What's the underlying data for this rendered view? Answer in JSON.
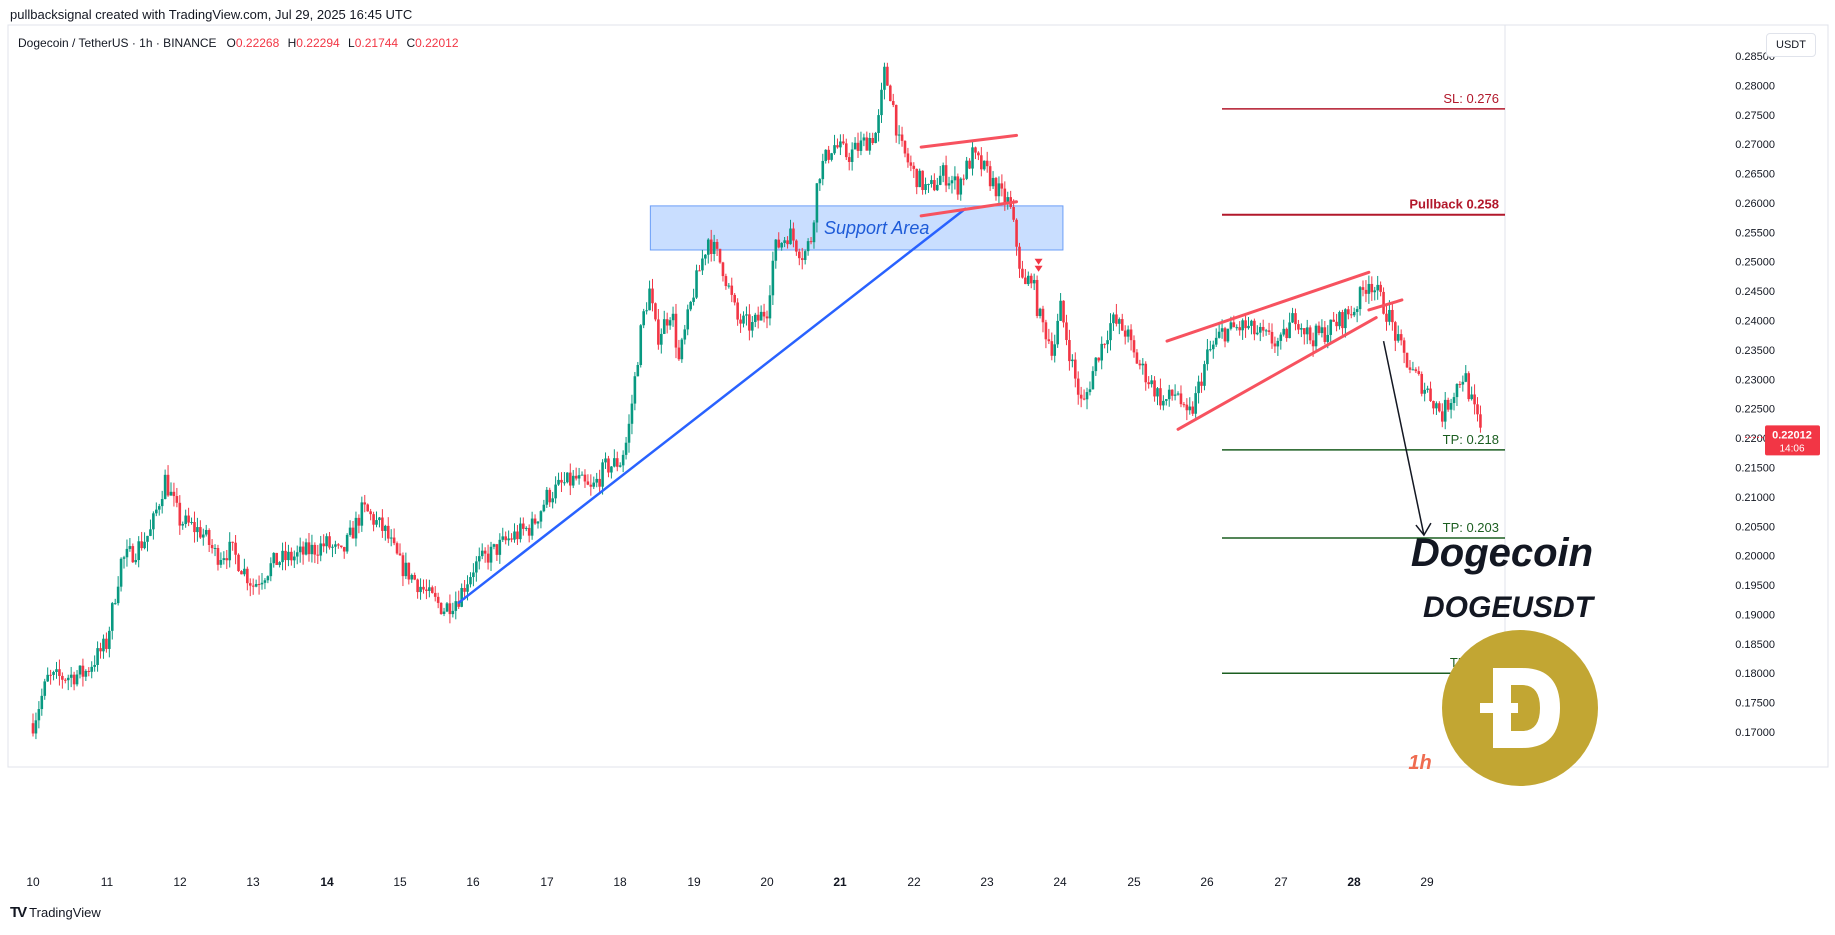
{
  "attribution": "pullbacksignal created with TradingView.com, Jul 29, 2025 16:45 UTC",
  "symbol": {
    "name": "Dogecoin / TetherUS · 1h · BINANCE",
    "o_label": "O",
    "o_value": "0.22268",
    "h_label": "H",
    "h_value": "0.22294",
    "l_label": "L",
    "l_value": "0.21744",
    "c_label": "C",
    "c_value": "0.22012"
  },
  "currency_button": "USDT",
  "brand": "TradingView",
  "colors": {
    "up": "#089981",
    "down": "#f23645",
    "trend": "#2962ff",
    "level_red": "#b2182b",
    "level_green": "#1b5e20",
    "wedge": "#f7525f",
    "coin": "#c2a633"
  },
  "chart_data": {
    "type": "candlestick",
    "title": "Dogecoin",
    "subtitle": "DOGEUSDT",
    "timeframe_label": "1h",
    "x_labels": [
      "10",
      "11",
      "12",
      "13",
      "14",
      "15",
      "16",
      "17",
      "18",
      "19",
      "20",
      "21",
      "22",
      "23",
      "24",
      "25",
      "26",
      "27",
      "28",
      "29"
    ],
    "bold_x_labels": [
      "14",
      "21",
      "28"
    ],
    "y_ticks": [
      "0.28500",
      "0.28000",
      "0.27500",
      "0.27000",
      "0.26500",
      "0.26000",
      "0.25500",
      "0.25000",
      "0.24500",
      "0.24000",
      "0.23500",
      "0.23000",
      "0.22500",
      "0.22000",
      "0.21500",
      "0.21000",
      "0.20500",
      "0.20000",
      "0.19500",
      "0.19000",
      "0.18500",
      "0.18000",
      "0.17500",
      "0.17000"
    ],
    "ylim": [
      0.1685,
      0.2885
    ],
    "current_price": "0.22012",
    "countdown": "14:06",
    "close_path": [
      [
        10.0,
        0.1715
      ],
      [
        10.2,
        0.179
      ],
      [
        10.5,
        0.1795
      ],
      [
        10.7,
        0.18
      ],
      [
        11.0,
        0.185
      ],
      [
        11.2,
        0.199
      ],
      [
        11.4,
        0.201
      ],
      [
        11.6,
        0.204
      ],
      [
        11.8,
        0.213
      ],
      [
        12.0,
        0.206
      ],
      [
        12.3,
        0.204
      ],
      [
        12.5,
        0.2
      ],
      [
        12.7,
        0.201
      ],
      [
        13.0,
        0.195
      ],
      [
        13.3,
        0.199
      ],
      [
        13.6,
        0.2
      ],
      [
        14.0,
        0.202
      ],
      [
        14.2,
        0.2
      ],
      [
        14.5,
        0.208
      ],
      [
        14.8,
        0.204
      ],
      [
        15.0,
        0.1985
      ],
      [
        15.2,
        0.196
      ],
      [
        15.4,
        0.193
      ],
      [
        15.6,
        0.191
      ],
      [
        15.8,
        0.193
      ],
      [
        16.0,
        0.198
      ],
      [
        16.2,
        0.2
      ],
      [
        16.5,
        0.203
      ],
      [
        16.8,
        0.205
      ],
      [
        17.0,
        0.21
      ],
      [
        17.2,
        0.212
      ],
      [
        17.4,
        0.213
      ],
      [
        17.6,
        0.211
      ],
      [
        17.8,
        0.215
      ],
      [
        18.0,
        0.216
      ],
      [
        18.1,
        0.22
      ],
      [
        18.2,
        0.23
      ],
      [
        18.3,
        0.24
      ],
      [
        18.4,
        0.245
      ],
      [
        18.5,
        0.237
      ],
      [
        18.7,
        0.242
      ],
      [
        18.8,
        0.233
      ],
      [
        19.0,
        0.245
      ],
      [
        19.2,
        0.254
      ],
      [
        19.4,
        0.249
      ],
      [
        19.6,
        0.24
      ],
      [
        19.8,
        0.239
      ],
      [
        20.0,
        0.242
      ],
      [
        20.1,
        0.252
      ],
      [
        20.3,
        0.255
      ],
      [
        20.5,
        0.251
      ],
      [
        20.6,
        0.254
      ],
      [
        20.7,
        0.265
      ],
      [
        20.9,
        0.27
      ],
      [
        21.1,
        0.268
      ],
      [
        21.3,
        0.27
      ],
      [
        21.5,
        0.272
      ],
      [
        21.6,
        0.282
      ],
      [
        21.7,
        0.278
      ],
      [
        21.8,
        0.27
      ],
      [
        22.0,
        0.265
      ],
      [
        22.2,
        0.262
      ],
      [
        22.4,
        0.265
      ],
      [
        22.6,
        0.263
      ],
      [
        22.8,
        0.268
      ],
      [
        23.0,
        0.265
      ],
      [
        23.2,
        0.261
      ],
      [
        23.3,
        0.26
      ],
      [
        23.4,
        0.253
      ],
      [
        23.5,
        0.245
      ],
      [
        23.6,
        0.248
      ],
      [
        23.7,
        0.241
      ],
      [
        23.9,
        0.235
      ],
      [
        24.0,
        0.242
      ],
      [
        24.1,
        0.236
      ],
      [
        24.2,
        0.23
      ],
      [
        24.3,
        0.225
      ],
      [
        24.5,
        0.234
      ],
      [
        24.7,
        0.24
      ],
      [
        24.9,
        0.238
      ],
      [
        25.0,
        0.234
      ],
      [
        25.2,
        0.23
      ],
      [
        25.4,
        0.226
      ],
      [
        25.6,
        0.228
      ],
      [
        25.7,
        0.223
      ],
      [
        25.8,
        0.225
      ],
      [
        26.0,
        0.234
      ],
      [
        26.2,
        0.238
      ],
      [
        26.5,
        0.239
      ],
      [
        26.8,
        0.237
      ],
      [
        27.0,
        0.236
      ],
      [
        27.2,
        0.241
      ],
      [
        27.4,
        0.237
      ],
      [
        27.6,
        0.238
      ],
      [
        27.8,
        0.24
      ],
      [
        28.0,
        0.242
      ],
      [
        28.2,
        0.247
      ],
      [
        28.3,
        0.245
      ],
      [
        28.5,
        0.24
      ],
      [
        28.6,
        0.236
      ],
      [
        28.8,
        0.231
      ],
      [
        29.0,
        0.228
      ],
      [
        29.2,
        0.224
      ],
      [
        29.4,
        0.229
      ],
      [
        29.5,
        0.231
      ],
      [
        29.6,
        0.226
      ],
      [
        29.75,
        0.2201
      ]
    ],
    "levels": [
      {
        "label": "SL: 0.276",
        "value": 0.276,
        "kind": "red"
      },
      {
        "label": "Pullback 0.258",
        "value": 0.258,
        "kind": "red"
      },
      {
        "label": "TP: 0.218",
        "value": 0.218,
        "kind": "green"
      },
      {
        "label": "TP: 0.203",
        "value": 0.203,
        "kind": "green"
      },
      {
        "label": "TP: 0.18",
        "value": 0.18,
        "kind": "green"
      }
    ],
    "support_zone": {
      "label": "Support Area",
      "x_from": 18.37,
      "x_to": 23.95,
      "y_from": 0.252,
      "y_to": 0.2595
    },
    "trendline": {
      "from": [
        15.8,
        0.192
      ],
      "to": [
        22.7,
        0.259
      ]
    },
    "flag_upper": {
      "from": [
        22.1,
        0.2695
      ],
      "to": [
        23.4,
        0.2715
      ]
    },
    "flag_lower": {
      "from": [
        22.1,
        0.2578
      ],
      "to": [
        23.4,
        0.2602
      ]
    },
    "wedge_upper": {
      "from": [
        25.45,
        0.2365
      ],
      "to": [
        28.2,
        0.2482
      ]
    },
    "wedge_lower": {
      "from": [
        25.6,
        0.2215
      ],
      "to": [
        28.3,
        0.2405
      ]
    },
    "wedge_break_top": {
      "from": [
        28.2,
        0.2418
      ],
      "to": [
        28.65,
        0.2435
      ]
    },
    "projection_arrow": {
      "from": [
        28.4,
        0.2365
      ],
      "to": [
        28.95,
        0.2035
      ]
    },
    "down_marker": {
      "x": 23.7,
      "y": 0.2505
    },
    "annotation_font": "serif-ish"
  }
}
